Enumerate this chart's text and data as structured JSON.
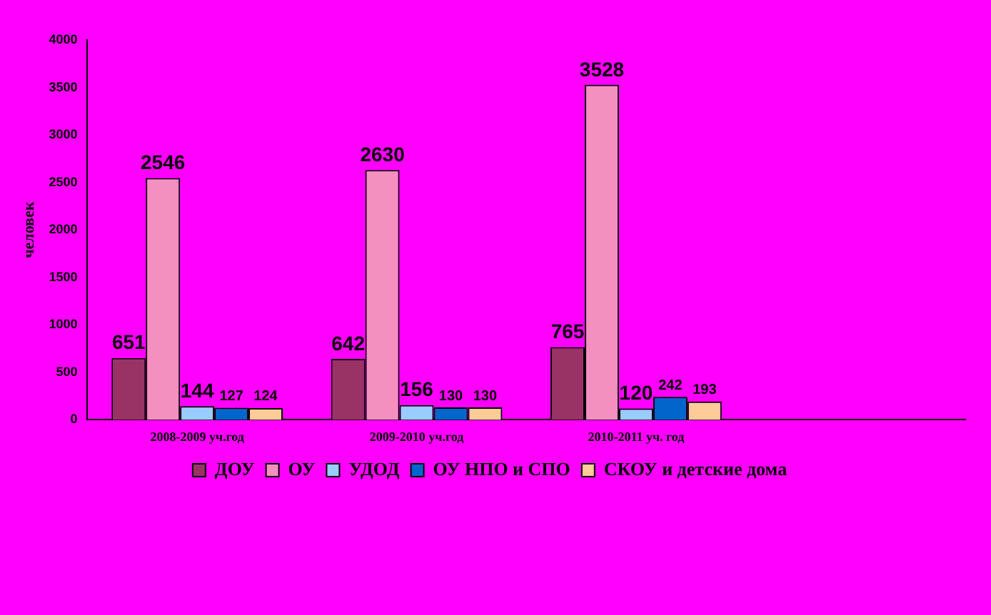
{
  "chart_data": {
    "type": "bar",
    "ylabel": "человек",
    "categories": [
      "2008-2009 уч.год",
      "2009-2010 уч.год",
      "2010-2011 уч. год",
      null
    ],
    "series": [
      {
        "name": "ДОУ",
        "color": "#993366",
        "values": [
          651,
          642,
          765,
          null
        ]
      },
      {
        "name": "ОУ",
        "color": "#f490c0",
        "values": [
          2546,
          2630,
          3528,
          null
        ]
      },
      {
        "name": "УДОД",
        "color": "#99ccff",
        "values": [
          144,
          156,
          120,
          null
        ]
      },
      {
        "name": "ОУ НПО и СПО",
        "color": "#0066cc",
        "values": [
          127,
          130,
          242,
          null
        ]
      },
      {
        "name": "СКОУ и детские дома",
        "color": "#ffcc99",
        "values": [
          124,
          130,
          193,
          null
        ]
      }
    ],
    "ylim": [
      0,
      4000
    ],
    "yticks": [
      0,
      500,
      1000,
      1500,
      2000,
      2500,
      3000,
      3500,
      4000
    ],
    "grid": false,
    "legend": "bottom",
    "data_labels": true
  }
}
